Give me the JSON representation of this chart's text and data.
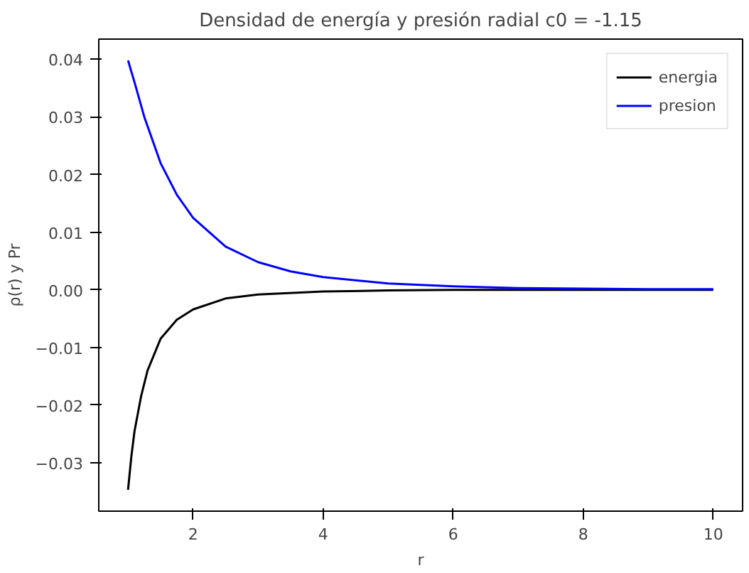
{
  "chart_data": {
    "type": "line",
    "title": "Densidad de energía y presión radial c0 = -1.15",
    "xlabel": "r",
    "ylabel": "ρ(r) y Pr",
    "series": [
      {
        "name": "energia",
        "color": "#000000",
        "x": [
          1.0,
          1.05,
          1.1,
          1.2,
          1.3,
          1.5,
          1.75,
          2,
          2.5,
          3,
          4,
          5,
          6,
          7,
          8,
          9,
          10
        ],
        "values": [
          -0.0347,
          -0.029,
          -0.0245,
          -0.0185,
          -0.014,
          -0.0085,
          -0.0052,
          -0.0034,
          -0.0015,
          -0.0008,
          -0.0003,
          -0.0001,
          0,
          0,
          0,
          0,
          0
        ]
      },
      {
        "name": "presion",
        "color": "#0000ff",
        "x": [
          1.0,
          1.1,
          1.25,
          1.5,
          1.75,
          2,
          2.5,
          3,
          3.5,
          4,
          5,
          6,
          7,
          8,
          9,
          10
        ],
        "values": [
          0.0398,
          0.036,
          0.03,
          0.022,
          0.0165,
          0.0125,
          0.0075,
          0.0048,
          0.0032,
          0.0022,
          0.0011,
          0.0006,
          0.0003,
          0.0002,
          0.0001,
          0.0001
        ]
      }
    ],
    "xlim": [
      0.55,
      10.45
    ],
    "ylim": [
      -0.0384,
      0.0435
    ],
    "xticks": [
      2,
      4,
      6,
      8,
      10
    ],
    "yticks": [
      {
        "value": -0.03,
        "label": "−0.03"
      },
      {
        "value": -0.02,
        "label": "−0.02"
      },
      {
        "value": -0.01,
        "label": "−0.01"
      },
      {
        "value": 0,
        "label": "0.00"
      },
      {
        "value": 0.01,
        "label": "0.01"
      },
      {
        "value": 0.02,
        "label": "0.02"
      },
      {
        "value": 0.03,
        "label": "0.03"
      },
      {
        "value": 0.04,
        "label": "0.04"
      }
    ],
    "grid": false,
    "legend": "top right",
    "marker": "none",
    "line_style": "solid"
  }
}
